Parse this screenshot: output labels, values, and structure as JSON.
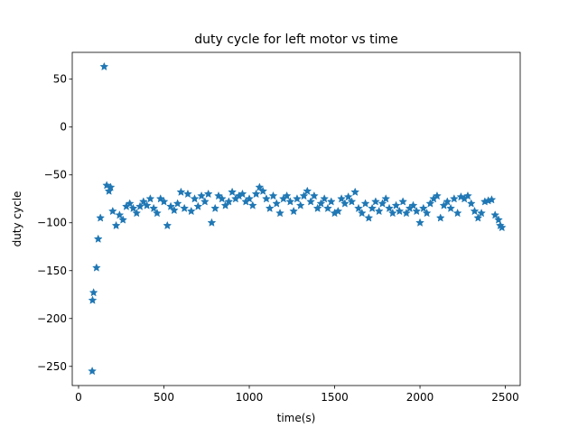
{
  "chart_data": {
    "type": "scatter",
    "title": "duty cycle for left motor vs time",
    "x_label": "time(s)",
    "y_label": "duty cycle",
    "color": "#1f77b4",
    "marker": "star",
    "x": [
      80,
      82,
      88,
      105,
      115,
      128,
      150,
      165,
      178,
      188,
      200,
      220,
      240,
      260,
      280,
      300,
      320,
      340,
      360,
      380,
      400,
      420,
      440,
      460,
      480,
      500,
      520,
      540,
      560,
      580,
      600,
      620,
      640,
      660,
      680,
      700,
      720,
      740,
      760,
      780,
      800,
      820,
      840,
      860,
      880,
      900,
      920,
      940,
      960,
      980,
      1000,
      1020,
      1040,
      1060,
      1080,
      1100,
      1120,
      1140,
      1160,
      1180,
      1200,
      1220,
      1240,
      1260,
      1280,
      1300,
      1320,
      1340,
      1360,
      1380,
      1400,
      1420,
      1440,
      1460,
      1480,
      1500,
      1520,
      1540,
      1560,
      1580,
      1600,
      1620,
      1640,
      1660,
      1680,
      1700,
      1720,
      1740,
      1760,
      1780,
      1800,
      1820,
      1840,
      1860,
      1880,
      1900,
      1920,
      1940,
      1960,
      1980,
      2000,
      2020,
      2040,
      2060,
      2080,
      2100,
      2120,
      2140,
      2160,
      2180,
      2200,
      2220,
      2240,
      2260,
      2280,
      2300,
      2320,
      2340,
      2360,
      2380,
      2400,
      2420,
      2440,
      2460,
      2470,
      2480
    ],
    "values": [
      -255,
      -181,
      -173,
      -147,
      -117,
      -95,
      63,
      -61,
      -67,
      -63,
      -88,
      -103,
      -92,
      -97,
      -83,
      -80,
      -85,
      -90,
      -83,
      -78,
      -82,
      -75,
      -85,
      -90,
      -75,
      -78,
      -103,
      -83,
      -87,
      -80,
      -68,
      -85,
      -70,
      -88,
      -75,
      -83,
      -72,
      -78,
      -70,
      -100,
      -85,
      -72,
      -75,
      -82,
      -78,
      -68,
      -75,
      -72,
      -70,
      -78,
      -75,
      -82,
      -70,
      -63,
      -67,
      -75,
      -85,
      -72,
      -80,
      -90,
      -75,
      -72,
      -78,
      -88,
      -75,
      -82,
      -72,
      -67,
      -78,
      -72,
      -85,
      -80,
      -75,
      -85,
      -78,
      -90,
      -88,
      -75,
      -80,
      -73,
      -78,
      -68,
      -85,
      -90,
      -80,
      -95,
      -85,
      -78,
      -88,
      -80,
      -75,
      -85,
      -90,
      -82,
      -88,
      -78,
      -90,
      -85,
      -82,
      -88,
      -100,
      -85,
      -90,
      -80,
      -75,
      -72,
      -95,
      -82,
      -78,
      -85,
      -75,
      -90,
      -73,
      -75,
      -72,
      -80,
      -88,
      -95,
      -90,
      -78,
      -77,
      -76,
      -92,
      -97,
      -103,
      -105
    ],
    "xlim": [
      -37,
      2587
    ],
    "ylim": [
      -270,
      78
    ],
    "xticks": [
      0,
      500,
      1000,
      1500,
      2000,
      2500
    ],
    "yticks": [
      {
        "value": -250,
        "label": "−250"
      },
      {
        "value": -200,
        "label": "−200"
      },
      {
        "value": -150,
        "label": "−150"
      },
      {
        "value": -100,
        "label": "−100"
      },
      {
        "value": -50,
        "label": "−50"
      },
      0,
      50
    ]
  }
}
